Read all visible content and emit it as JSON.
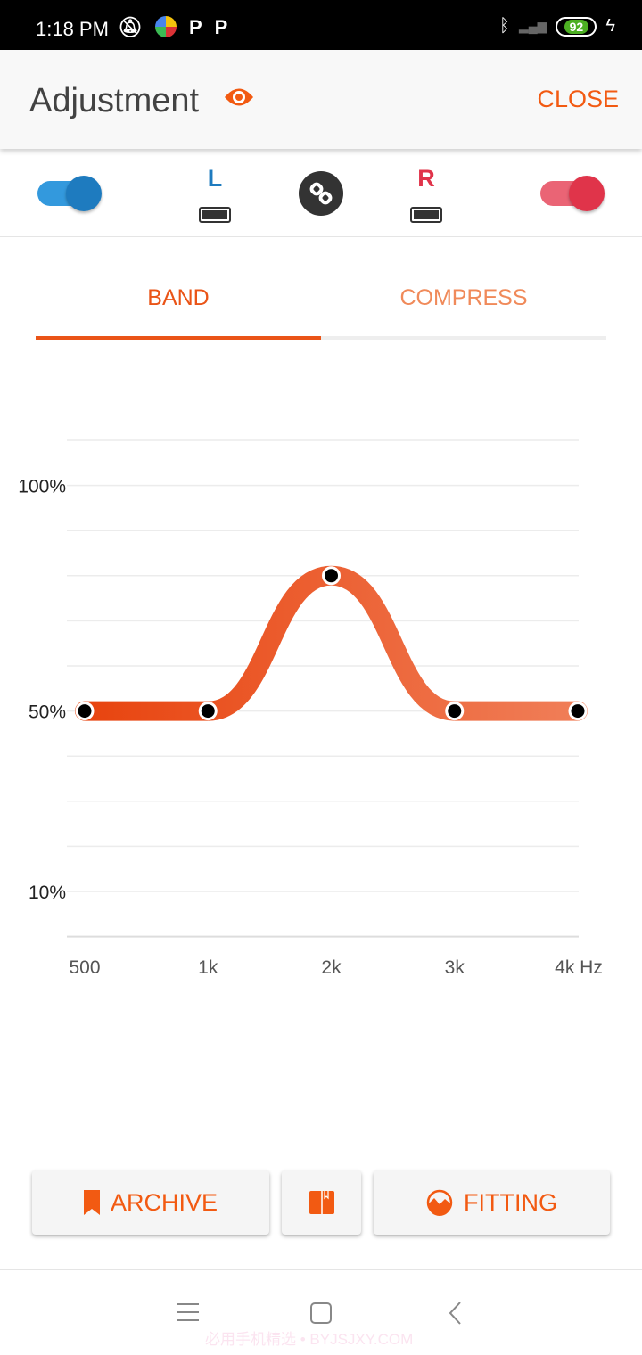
{
  "status_bar": {
    "time": "1:18 PM",
    "battery": "92",
    "icons": [
      "mute-icon",
      "app-icon",
      "p-icon",
      "p-icon",
      "bluetooth-icon",
      "signal-icon",
      "charging-icon"
    ]
  },
  "header": {
    "title": "Adjustment",
    "close_label": "CLOSE",
    "accent": "#f25a12"
  },
  "devices": {
    "left": {
      "label": "L",
      "color": "#1e7bbf",
      "enabled": true
    },
    "right": {
      "label": "R",
      "color": "#e0344a",
      "enabled": true
    },
    "linked": true
  },
  "tabs": [
    {
      "label": "BAND",
      "active": true
    },
    {
      "label": "COMPRESS",
      "active": false
    }
  ],
  "chart_data": {
    "type": "line",
    "categories": [
      "500",
      "1k",
      "2k",
      "3k",
      "4k Hz"
    ],
    "values": [
      50,
      50,
      80,
      50,
      50
    ],
    "y_ticks": [
      "100%",
      "50%",
      "10%"
    ],
    "y_tick_values": [
      100,
      50,
      10
    ],
    "ylim": [
      0,
      110
    ],
    "grid": true,
    "color_start": "#e8440f",
    "color_end": "#f07e58"
  },
  "buttons": {
    "archive": "ARCHIVE",
    "fitting": "FITTING"
  },
  "nav": {
    "watermark": "必用手机精选 • BYJSJXY.COM"
  }
}
